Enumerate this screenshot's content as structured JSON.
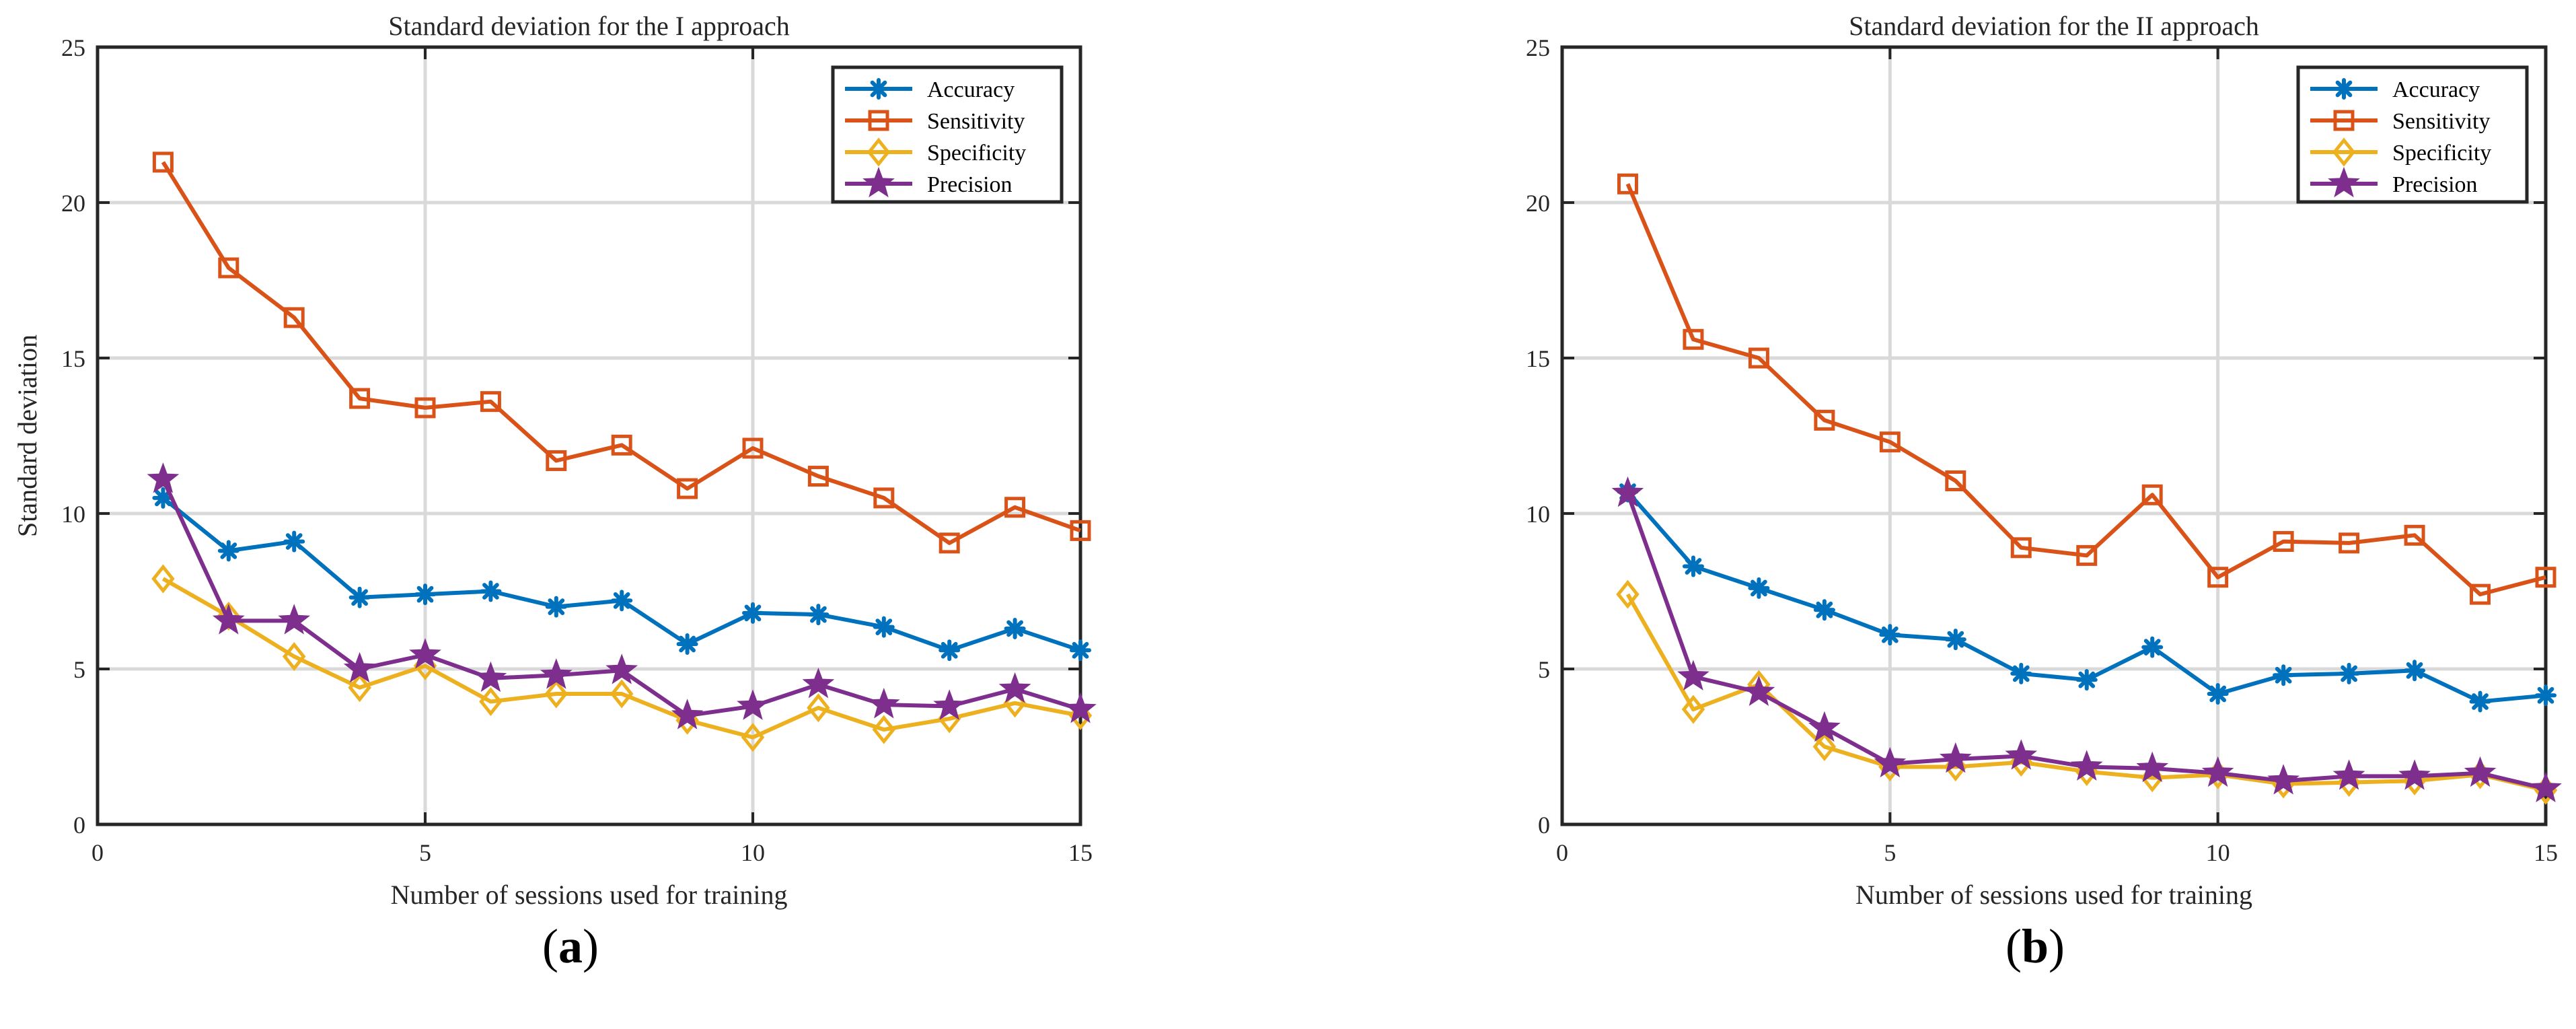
{
  "chart_data": [
    {
      "type": "line",
      "title": "Standard deviation for the I approach",
      "xlabel": "Number of sessions used for training",
      "ylabel": "Standard deviation",
      "xlim": [
        0,
        15
      ],
      "ylim": [
        0,
        25
      ],
      "xticks": [
        0,
        5,
        10,
        15
      ],
      "yticks": [
        0,
        5,
        10,
        15,
        20,
        25
      ],
      "grid": true,
      "legend_position": "top-right",
      "caption": "a",
      "x": [
        1,
        2,
        3,
        4,
        5,
        6,
        7,
        8,
        9,
        10,
        11,
        12,
        13,
        14,
        15
      ],
      "series": [
        {
          "name": "Accuracy",
          "color": "#0072BD",
          "marker": "asterisk",
          "values": [
            10.5,
            8.8,
            9.1,
            7.3,
            7.4,
            7.5,
            7.0,
            7.2,
            5.8,
            6.8,
            6.75,
            6.35,
            5.6,
            6.3,
            5.6
          ]
        },
        {
          "name": "Sensitivity",
          "color": "#D95319",
          "marker": "square",
          "values": [
            21.3,
            17.9,
            16.3,
            13.7,
            13.4,
            13.6,
            11.7,
            12.2,
            10.8,
            12.1,
            11.2,
            10.5,
            9.05,
            10.2,
            9.45
          ]
        },
        {
          "name": "Specificity",
          "color": "#EDB120",
          "marker": "diamond",
          "values": [
            7.9,
            6.7,
            5.4,
            4.4,
            5.1,
            3.95,
            4.2,
            4.2,
            3.35,
            2.8,
            3.75,
            3.05,
            3.4,
            3.9,
            3.5
          ]
        },
        {
          "name": "Precision",
          "color": "#7E2F8E",
          "marker": "star",
          "values": [
            11.1,
            6.55,
            6.55,
            5.0,
            5.45,
            4.7,
            4.8,
            4.95,
            3.5,
            3.8,
            4.5,
            3.85,
            3.8,
            4.35,
            3.7
          ]
        }
      ]
    },
    {
      "type": "line",
      "title": "Standard deviation for the II approach",
      "xlabel": "Number of sessions used for training",
      "ylabel": "",
      "xlim": [
        0,
        15
      ],
      "ylim": [
        0,
        25
      ],
      "xticks": [
        0,
        5,
        10,
        15
      ],
      "yticks": [
        0,
        5,
        10,
        15,
        20,
        25
      ],
      "grid": true,
      "legend_position": "top-right",
      "caption": "b",
      "x": [
        1,
        2,
        3,
        4,
        5,
        6,
        7,
        8,
        9,
        10,
        11,
        12,
        13,
        14,
        15
      ],
      "series": [
        {
          "name": "Accuracy",
          "color": "#0072BD",
          "marker": "asterisk",
          "values": [
            10.7,
            8.3,
            7.6,
            6.9,
            6.1,
            5.95,
            4.85,
            4.65,
            5.7,
            4.2,
            4.8,
            4.85,
            4.95,
            3.95,
            4.15
          ]
        },
        {
          "name": "Sensitivity",
          "color": "#D95319",
          "marker": "square",
          "values": [
            20.6,
            15.6,
            15.0,
            13.0,
            12.3,
            11.05,
            8.9,
            8.65,
            10.6,
            7.95,
            9.1,
            9.05,
            9.3,
            7.4,
            7.95
          ]
        },
        {
          "name": "Specificity",
          "color": "#EDB120",
          "marker": "diamond",
          "values": [
            7.4,
            3.7,
            4.5,
            2.5,
            1.85,
            1.85,
            2.0,
            1.7,
            1.5,
            1.6,
            1.3,
            1.35,
            1.4,
            1.6,
            1.1
          ]
        },
        {
          "name": "Precision",
          "color": "#7E2F8E",
          "marker": "star",
          "values": [
            10.65,
            4.75,
            4.25,
            3.1,
            1.95,
            2.1,
            2.2,
            1.85,
            1.8,
            1.65,
            1.4,
            1.55,
            1.55,
            1.65,
            1.15
          ]
        }
      ]
    }
  ]
}
